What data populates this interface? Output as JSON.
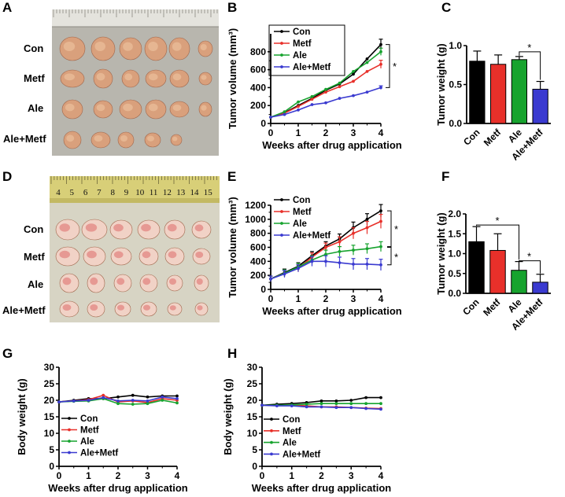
{
  "colors": {
    "con": "#000000",
    "metf": "#e8302a",
    "ale": "#17a32e",
    "aleMetf": "#3a3ad0"
  },
  "photos": [
    {
      "panel": "A",
      "rows": [
        "Con",
        "Metf",
        "Ale",
        "Ale+Metf"
      ],
      "counts": [
        6,
        6,
        6,
        5
      ],
      "ruler_numbers": [],
      "background": "#b8b6ae"
    },
    {
      "panel": "D",
      "rows": [
        "Con",
        "Metf",
        "Ale",
        "Ale+Metf"
      ],
      "counts": [
        6,
        6,
        6,
        6
      ],
      "ruler_numbers": [
        "4",
        "5",
        "6",
        "7",
        "8",
        "9",
        "10",
        "11",
        "12",
        "13",
        "14",
        "15"
      ],
      "background": "#d7d4c4"
    }
  ],
  "chart_data": [
    {
      "panel": "B",
      "type": "line",
      "ylabel": "Tumor volume (mm³)",
      "xlabel": "Weeks after drug application",
      "ylim": [
        0,
        1000
      ],
      "yticks": [
        0,
        200,
        400,
        600,
        800
      ],
      "xlim": [
        0,
        4
      ],
      "xticks": [
        0,
        1,
        2,
        3,
        4
      ],
      "x": [
        0,
        0.5,
        1,
        1.5,
        2,
        2.5,
        3,
        3.5,
        4
      ],
      "series": [
        {
          "name": "Con",
          "key": "con",
          "values": [
            70,
            120,
            200,
            280,
            370,
            440,
            550,
            720,
            880
          ],
          "err": [
            0,
            0,
            0,
            0,
            0,
            0,
            0,
            0,
            60
          ]
        },
        {
          "name": "Metf",
          "key": "metf",
          "values": [
            70,
            115,
            190,
            270,
            350,
            410,
            470,
            580,
            660
          ],
          "err": [
            0,
            0,
            0,
            0,
            0,
            0,
            0,
            0,
            45
          ]
        },
        {
          "name": "Ale",
          "key": "ale",
          "values": [
            70,
            130,
            240,
            300,
            380,
            450,
            580,
            680,
            800
          ],
          "err": [
            0,
            0,
            0,
            0,
            0,
            0,
            0,
            0,
            40
          ]
        },
        {
          "name": "Ale+Metf",
          "key": "aleMetf",
          "values": [
            70,
            100,
            150,
            210,
            230,
            280,
            310,
            350,
            400
          ],
          "err": [
            0,
            0,
            0,
            0,
            0,
            0,
            0,
            0,
            20
          ]
        }
      ],
      "annotations": [
        "*"
      ]
    },
    {
      "panel": "C",
      "type": "bar",
      "ylabel": "Tumor weight (g)",
      "categories": [
        "Con",
        "Metf",
        "Ale",
        "Ale+Metf"
      ],
      "keys": [
        "con",
        "metf",
        "ale",
        "aleMetf"
      ],
      "values": [
        0.8,
        0.76,
        0.82,
        0.44
      ],
      "err": [
        0.13,
        0.12,
        0.04,
        0.1
      ],
      "ylim": [
        0,
        1.0
      ],
      "yticks": [
        0.0,
        0.5,
        1.0
      ],
      "yticklabels": [
        "0.0",
        "0.5",
        "1.0"
      ],
      "annotations": [
        "*"
      ]
    },
    {
      "panel": "E",
      "type": "line",
      "ylabel": "Tumor volume (mm³)",
      "xlabel": "Weeks after drug application",
      "ylim": [
        0,
        1200
      ],
      "yticks": [
        0,
        200,
        400,
        600,
        800,
        1000,
        1200
      ],
      "xlim": [
        0,
        4
      ],
      "xticks": [
        0,
        1,
        2,
        3,
        4
      ],
      "x": [
        0,
        0.5,
        1,
        1.5,
        2,
        2.5,
        3,
        3.5,
        4
      ],
      "series": [
        {
          "name": "Con",
          "key": "con",
          "values": [
            150,
            240,
            330,
            480,
            620,
            720,
            880,
            1000,
            1120
          ],
          "err": [
            40,
            50,
            50,
            60,
            60,
            70,
            80,
            80,
            90
          ]
        },
        {
          "name": "Metf",
          "key": "metf",
          "values": [
            150,
            230,
            300,
            460,
            600,
            680,
            800,
            880,
            970
          ],
          "err": [
            40,
            50,
            50,
            60,
            60,
            70,
            80,
            90,
            100
          ]
        },
        {
          "name": "Ale",
          "key": "ale",
          "values": [
            150,
            230,
            320,
            420,
            500,
            540,
            560,
            580,
            610
          ],
          "err": [
            40,
            50,
            50,
            60,
            60,
            70,
            70,
            70,
            70
          ]
        },
        {
          "name": "Ale+Metf",
          "key": "aleMetf",
          "values": [
            150,
            220,
            300,
            400,
            400,
            380,
            360,
            360,
            350
          ],
          "err": [
            40,
            50,
            50,
            70,
            80,
            80,
            80,
            80,
            80
          ]
        }
      ],
      "annotations": [
        "*",
        "*"
      ]
    },
    {
      "panel": "F",
      "type": "bar",
      "ylabel": "Tumor weight (g)",
      "categories": [
        "Con",
        "Metf",
        "Ale",
        "Ale+Metf"
      ],
      "keys": [
        "con",
        "metf",
        "ale",
        "aleMetf"
      ],
      "values": [
        1.3,
        1.08,
        0.58,
        0.28
      ],
      "err": [
        0.38,
        0.42,
        0.22,
        0.2
      ],
      "ylim": [
        0,
        2.0
      ],
      "yticks": [
        0.0,
        0.5,
        1.0,
        1.5,
        2.0
      ],
      "yticklabels": [
        "0.0",
        "0.5",
        "1.0",
        "1.5",
        "2.0"
      ],
      "annotations": [
        "*",
        "*"
      ]
    },
    {
      "panel": "G",
      "type": "line",
      "ylabel": "Body weight (g)",
      "xlabel": "Weeks after drug application",
      "ylim": [
        0,
        30
      ],
      "yticks": [
        0,
        5,
        10,
        15,
        20,
        25,
        30
      ],
      "xlim": [
        0,
        4
      ],
      "xticks": [
        0,
        1,
        2,
        3,
        4
      ],
      "x": [
        0,
        0.5,
        1,
        1.5,
        2,
        2.5,
        3,
        3.5,
        4
      ],
      "series": [
        {
          "name": "Con",
          "key": "con",
          "values": [
            19.5,
            20.0,
            20.5,
            20.5,
            21.0,
            21.5,
            21.0,
            21.3,
            21.3
          ]
        },
        {
          "name": "Metf",
          "key": "metf",
          "values": [
            19.5,
            19.8,
            20.2,
            21.5,
            19.5,
            19.8,
            19.3,
            20.5,
            20.0
          ]
        },
        {
          "name": "Ale",
          "key": "ale",
          "values": [
            19.5,
            19.7,
            19.8,
            20.5,
            19.0,
            18.8,
            19.0,
            20.0,
            19.2
          ]
        },
        {
          "name": "Ale+Metf",
          "key": "aleMetf",
          "values": [
            19.5,
            19.8,
            20.0,
            20.8,
            19.8,
            20.0,
            19.8,
            21.0,
            20.5
          ]
        }
      ]
    },
    {
      "panel": "H",
      "type": "line",
      "ylabel": "Body weight (g)",
      "xlabel": "Weeks after drug application",
      "ylim": [
        0,
        30
      ],
      "yticks": [
        0,
        5,
        10,
        15,
        20,
        25,
        30
      ],
      "xlim": [
        0,
        4
      ],
      "xticks": [
        0,
        1,
        2,
        3,
        4
      ],
      "x": [
        0,
        0.5,
        1,
        1.5,
        2,
        2.5,
        3,
        3.5,
        4
      ],
      "series": [
        {
          "name": "Con",
          "key": "con",
          "values": [
            18.5,
            18.8,
            19.0,
            19.3,
            19.8,
            19.8,
            20.0,
            20.8,
            20.8
          ]
        },
        {
          "name": "Metf",
          "key": "metf",
          "values": [
            18.5,
            18.5,
            18.5,
            18.3,
            18.0,
            18.0,
            17.8,
            17.6,
            17.5
          ]
        },
        {
          "name": "Ale",
          "key": "ale",
          "values": [
            18.5,
            18.5,
            18.6,
            18.8,
            19.0,
            19.0,
            19.0,
            19.0,
            19.0
          ]
        },
        {
          "name": "Ale+Metf",
          "key": "aleMetf",
          "values": [
            18.5,
            18.3,
            18.3,
            18.0,
            18.0,
            17.8,
            17.8,
            17.5,
            17.3
          ]
        }
      ]
    }
  ]
}
